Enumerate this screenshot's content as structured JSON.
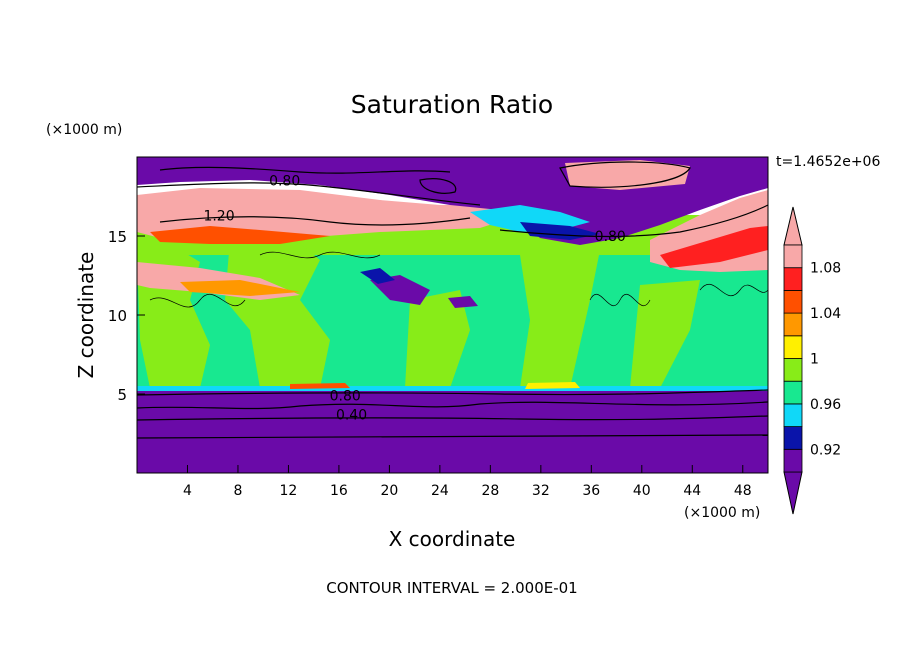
{
  "chart_data": {
    "type": "heatmap",
    "title": "Saturation Ratio",
    "xlabel": "X coordinate",
    "ylabel": "Z coordinate",
    "x_unit": "(×1000 m)",
    "y_unit": "(×1000 m)",
    "time_label": "t=1.4652e+06",
    "footer": "CONTOUR INTERVAL = 2.000E-01",
    "xlim": [
      0,
      50
    ],
    "ylim": [
      0,
      20
    ],
    "x_ticks": [
      4,
      8,
      12,
      16,
      20,
      24,
      28,
      32,
      36,
      40,
      44,
      48
    ],
    "y_ticks": [
      5,
      10,
      15
    ],
    "contour_labels": [
      {
        "text": "0.80",
        "x": 11.7,
        "y": 18.5
      },
      {
        "text": "1.20",
        "x": 6.5,
        "y": 16.3
      },
      {
        "text": "0.80",
        "x": 37.5,
        "y": 15.0
      },
      {
        "text": "0.80",
        "x": 16.5,
        "y": 4.9
      },
      {
        "text": "0.40",
        "x": 17.0,
        "y": 3.7
      }
    ],
    "colorbar": {
      "levels": [
        0.92,
        0.96,
        1,
        1.04,
        1.08
      ],
      "tick_labels": [
        "0.92",
        "0.96",
        "1",
        "1.04",
        "1.08"
      ],
      "colors": [
        "#6a0aa8",
        "#0a14aa",
        "#10d8f8",
        "#18e890",
        "#88ec18",
        "#fff000",
        "#ff9800",
        "#ff5000",
        "#ff2020",
        "#f8a8a8"
      ],
      "extend": "both"
    }
  }
}
